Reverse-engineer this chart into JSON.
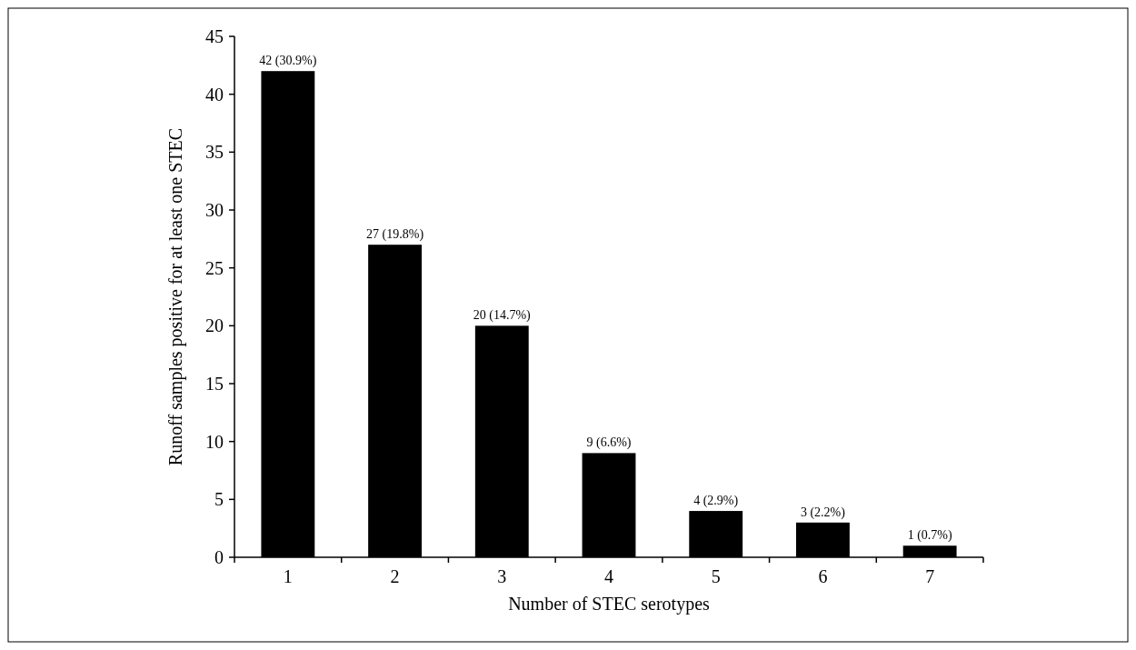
{
  "chart_data": {
    "type": "bar",
    "xlabel": "Number of STEC serotypes",
    "ylabel": "Runoff samples positive for at least one STEC",
    "categories": [
      "1",
      "2",
      "3",
      "4",
      "5",
      "6",
      "7"
    ],
    "values": [
      42,
      27,
      20,
      9,
      4,
      3,
      1
    ],
    "color": "#000000",
    "value_labels": [
      "42 (30.9%)",
      "27 (19.8%)",
      "20 (14.7%)",
      "9 (6.6%)",
      "4 (2.9%)",
      "3 (2.2%)",
      "1 (0.7%)"
    ],
    "ylim": [
      0,
      45
    ],
    "yticks": [
      0,
      5,
      10,
      15,
      20,
      25,
      30,
      35,
      40,
      45
    ],
    "grid": false
  }
}
